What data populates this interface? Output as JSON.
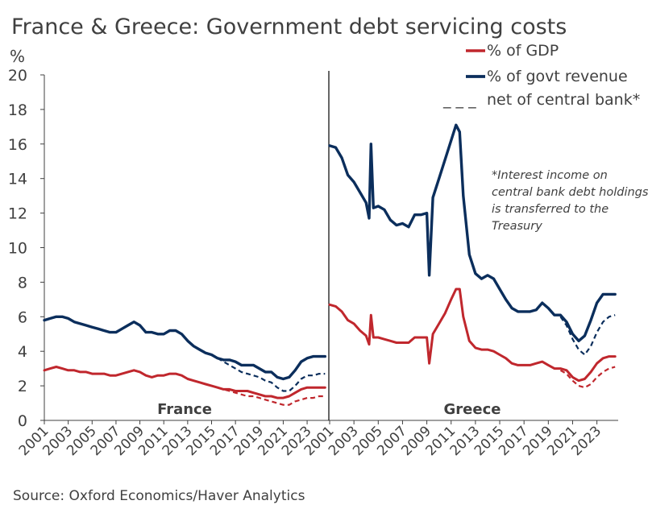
{
  "title": "France & Greece: Government debt servicing costs",
  "source": "Source: Oxford Economics/Haver Analytics",
  "colors": {
    "gdp": "#c0272d",
    "revenue": "#0b2e5c",
    "net": "#0b2e5c",
    "axis": "#404040"
  },
  "chart_data": {
    "type": "line",
    "ylabel": "%",
    "ylim": [
      0,
      20
    ],
    "yticks": [
      "0",
      "2",
      "4",
      "6",
      "8",
      "10",
      "12",
      "14",
      "16",
      "18",
      "20"
    ],
    "xticks": [
      "2001",
      "2003",
      "2005",
      "2007",
      "2009",
      "2011",
      "2013",
      "2015",
      "2017",
      "2019",
      "2021",
      "2023"
    ],
    "xlim": [
      2001,
      2024.75
    ],
    "legend": {
      "gdp": "% of GDP",
      "revenue": "% of govt revenue",
      "net_marker": "_ _ _",
      "net": "net of central bank*"
    },
    "note_lines": [
      "*Interest income on",
      "central bank debt holdings",
      "is transferred to the",
      "Treasury"
    ],
    "panels": [
      {
        "name": "France",
        "series": [
          {
            "name": "% of govt revenue",
            "key": "revenue",
            "x": [
              2001,
              2001.5,
              2002,
              2002.5,
              2003,
              2003.5,
              2004,
              2004.5,
              2005,
              2005.5,
              2006,
              2006.5,
              2007,
              2007.5,
              2008,
              2008.5,
              2009,
              2009.5,
              2010,
              2010.5,
              2011,
              2011.5,
              2012,
              2012.5,
              2013,
              2013.5,
              2014,
              2014.5,
              2015,
              2015.5,
              2016,
              2016.5,
              2017,
              2017.5,
              2018,
              2018.5,
              2019,
              2019.5,
              2020,
              2020.5,
              2021,
              2021.5,
              2022,
              2022.5,
              2023,
              2023.5,
              2024,
              2024.5
            ],
            "values": [
              5.8,
              5.9,
              6.0,
              6.0,
              5.9,
              5.7,
              5.6,
              5.5,
              5.4,
              5.3,
              5.2,
              5.1,
              5.1,
              5.3,
              5.5,
              5.7,
              5.5,
              5.1,
              5.1,
              5.0,
              5.0,
              5.2,
              5.2,
              5.0,
              4.6,
              4.3,
              4.1,
              3.9,
              3.8,
              3.6,
              3.5,
              3.5,
              3.4,
              3.2,
              3.2,
              3.2,
              3.0,
              2.8,
              2.8,
              2.5,
              2.4,
              2.5,
              2.9,
              3.4,
              3.6,
              3.7,
              3.7,
              3.7
            ]
          },
          {
            "name": "net of central bank",
            "key": "net",
            "x": [
              2015.5,
              2016,
              2016.5,
              2017,
              2017.5,
              2018,
              2018.5,
              2019,
              2019.5,
              2020,
              2020.5,
              2021,
              2021.5,
              2022,
              2022.5,
              2023,
              2023.5,
              2024,
              2024.5
            ],
            "values": [
              3.6,
              3.4,
              3.2,
              3.0,
              2.8,
              2.7,
              2.6,
              2.5,
              2.3,
              2.2,
              1.9,
              1.7,
              1.7,
              2.0,
              2.4,
              2.6,
              2.6,
              2.7,
              2.7
            ]
          },
          {
            "name": "% of GDP",
            "key": "gdp",
            "x": [
              2001,
              2001.5,
              2002,
              2002.5,
              2003,
              2003.5,
              2004,
              2004.5,
              2005,
              2005.5,
              2006,
              2006.5,
              2007,
              2007.5,
              2008,
              2008.5,
              2009,
              2009.5,
              2010,
              2010.5,
              2011,
              2011.5,
              2012,
              2012.5,
              2013,
              2013.5,
              2014,
              2014.5,
              2015,
              2015.5,
              2016,
              2016.5,
              2017,
              2017.5,
              2018,
              2018.5,
              2019,
              2019.5,
              2020,
              2020.5,
              2021,
              2021.5,
              2022,
              2022.5,
              2023,
              2023.5,
              2024,
              2024.5
            ],
            "values": [
              2.9,
              3.0,
              3.1,
              3.0,
              2.9,
              2.9,
              2.8,
              2.8,
              2.7,
              2.7,
              2.7,
              2.6,
              2.6,
              2.7,
              2.8,
              2.9,
              2.8,
              2.6,
              2.5,
              2.6,
              2.6,
              2.7,
              2.7,
              2.6,
              2.4,
              2.3,
              2.2,
              2.1,
              2.0,
              1.9,
              1.8,
              1.8,
              1.7,
              1.7,
              1.7,
              1.6,
              1.5,
              1.4,
              1.4,
              1.3,
              1.3,
              1.4,
              1.6,
              1.8,
              1.9,
              1.9,
              1.9,
              1.9
            ]
          },
          {
            "name": "net of central bank",
            "key": "net",
            "x": [
              2015.5,
              2016,
              2016.5,
              2017,
              2017.5,
              2018,
              2018.5,
              2019,
              2019.5,
              2020,
              2020.5,
              2021,
              2021.5,
              2022,
              2022.5,
              2023,
              2023.5,
              2024,
              2024.5
            ],
            "values": [
              1.9,
              1.8,
              1.7,
              1.6,
              1.5,
              1.4,
              1.4,
              1.3,
              1.2,
              1.1,
              1.0,
              0.9,
              0.9,
              1.1,
              1.2,
              1.3,
              1.3,
              1.4,
              1.4
            ]
          }
        ]
      },
      {
        "name": "Greece",
        "series": [
          {
            "name": "% of govt revenue",
            "key": "revenue",
            "x": [
              2001,
              2001.5,
              2002,
              2002.5,
              2003,
              2003.5,
              2004,
              2004.25,
              2004.4,
              2004.6,
              2005,
              2005.5,
              2006,
              2006.5,
              2007,
              2007.5,
              2008,
              2008.5,
              2009,
              2009.2,
              2009.5,
              2010,
              2010.5,
              2011,
              2011.4,
              2011.7,
              2012,
              2012.5,
              2013,
              2013.5,
              2014,
              2014.5,
              2015,
              2015.5,
              2016,
              2016.5,
              2017,
              2017.5,
              2018,
              2018.5,
              2019,
              2019.5,
              2020,
              2020.5,
              2021,
              2021.5,
              2022,
              2022.5,
              2023,
              2023.5,
              2024,
              2024.5
            ],
            "values": [
              15.9,
              15.8,
              15.2,
              14.2,
              13.8,
              13.2,
              12.6,
              11.7,
              16.0,
              12.3,
              12.4,
              12.2,
              11.6,
              11.3,
              11.4,
              11.2,
              11.9,
              11.9,
              12.0,
              8.4,
              12.9,
              14.0,
              15.1,
              16.2,
              17.1,
              16.7,
              13.0,
              9.6,
              8.5,
              8.2,
              8.4,
              8.2,
              7.6,
              7.0,
              6.5,
              6.3,
              6.3,
              6.3,
              6.4,
              6.8,
              6.5,
              6.1,
              6.1,
              5.7,
              5.0,
              4.6,
              4.9,
              5.8,
              6.8,
              7.3,
              7.3,
              7.3
            ]
          },
          {
            "name": "net of central bank",
            "key": "net",
            "x": [
              2020,
              2020.5,
              2021,
              2021.5,
              2022,
              2022.5,
              2023,
              2023.5,
              2024,
              2024.5
            ],
            "values": [
              6.0,
              5.5,
              4.7,
              4.1,
              3.8,
              4.3,
              5.1,
              5.7,
              6.0,
              6.1
            ]
          },
          {
            "name": "% of GDP",
            "key": "gdp",
            "x": [
              2001,
              2001.5,
              2002,
              2002.5,
              2003,
              2003.5,
              2004,
              2004.25,
              2004.4,
              2004.6,
              2005,
              2005.5,
              2006,
              2006.5,
              2007,
              2007.5,
              2008,
              2008.5,
              2009,
              2009.2,
              2009.5,
              2010,
              2010.5,
              2011,
              2011.4,
              2011.7,
              2012,
              2012.5,
              2013,
              2013.5,
              2014,
              2014.5,
              2015,
              2015.5,
              2016,
              2016.5,
              2017,
              2017.5,
              2018,
              2018.5,
              2019,
              2019.5,
              2020,
              2020.5,
              2021,
              2021.5,
              2022,
              2022.5,
              2023,
              2023.5,
              2024,
              2024.5
            ],
            "values": [
              6.7,
              6.6,
              6.3,
              5.8,
              5.6,
              5.2,
              4.9,
              4.4,
              6.1,
              4.8,
              4.8,
              4.7,
              4.6,
              4.5,
              4.5,
              4.5,
              4.8,
              4.8,
              4.8,
              3.3,
              5.0,
              5.6,
              6.2,
              7.0,
              7.6,
              7.6,
              6.0,
              4.6,
              4.2,
              4.1,
              4.1,
              4.0,
              3.8,
              3.6,
              3.3,
              3.2,
              3.2,
              3.2,
              3.3,
              3.4,
              3.2,
              3.0,
              3.0,
              2.9,
              2.5,
              2.3,
              2.4,
              2.8,
              3.3,
              3.6,
              3.7,
              3.7
            ]
          },
          {
            "name": "net of central bank",
            "key": "net",
            "x": [
              2020,
              2020.5,
              2021,
              2021.5,
              2022,
              2022.5,
              2023,
              2023.5,
              2024,
              2024.5
            ],
            "values": [
              2.9,
              2.7,
              2.3,
              2.0,
              1.9,
              2.1,
              2.5,
              2.8,
              3.0,
              3.1
            ]
          }
        ]
      }
    ]
  }
}
